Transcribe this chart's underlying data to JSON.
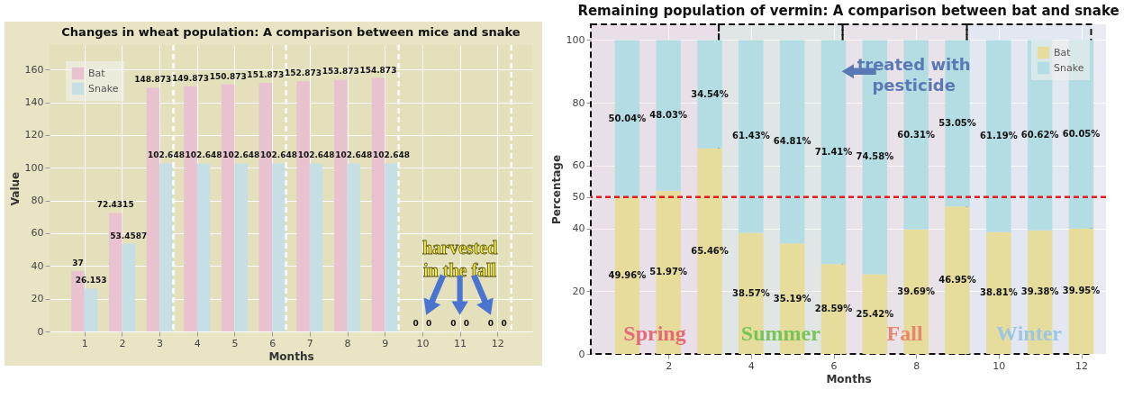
{
  "chart_data": [
    {
      "type": "bar",
      "title": "Changes in wheat population: A comparison between mice and snake",
      "xlabel": "Months",
      "ylabel": "Value",
      "x": [
        1,
        2,
        3,
        4,
        5,
        6,
        7,
        8,
        9,
        10,
        11,
        12
      ],
      "xlim": [
        0.07,
        12.93
      ],
      "xticks": [
        1,
        2,
        3,
        4,
        5,
        6,
        7,
        8,
        9,
        10,
        11,
        12
      ],
      "ylim": [
        0,
        175
      ],
      "yticks": [
        0,
        20,
        40,
        60,
        80,
        100,
        120,
        140,
        160
      ],
      "series": [
        {
          "name": "Bat",
          "color": "#e8c3cf",
          "values": [
            37,
            72.4315,
            148.873,
            149.873,
            150.873,
            151.873,
            152.873,
            153.873,
            154.873,
            0,
            0,
            0
          ]
        },
        {
          "name": "Snake",
          "color": "#c5dfe5",
          "values": [
            26.153,
            53.4587,
            102.648,
            102.648,
            102.648,
            102.648,
            102.648,
            102.648,
            102.648,
            0,
            0,
            0
          ]
        }
      ],
      "data_labels": true,
      "ref_lines": [
        {
          "axis": "x",
          "value": 3.37,
          "color": "#ffffff",
          "line_style": "dashed"
        },
        {
          "axis": "x",
          "value": 6.37,
          "color": "#ffffff",
          "line_style": "dashed"
        },
        {
          "axis": "x",
          "value": 9.37,
          "color": "#ffffff",
          "line_style": "dashed"
        },
        {
          "axis": "x",
          "value": 12.37,
          "color": "#ffffff",
          "line_style": "dashed"
        }
      ],
      "annotations": [
        "harvested\nin the fall"
      ],
      "legend": "top left",
      "grid": true
    },
    {
      "type": "bar",
      "stacked": true,
      "title": "Remaining population of vermin: A comparison between bat and snake",
      "xlabel": "Months",
      "ylabel": "Percentage",
      "x": [
        1,
        2,
        3,
        4,
        5,
        6,
        7,
        8,
        9,
        10,
        11,
        12
      ],
      "xlim": [
        0.12,
        12.6
      ],
      "xticks": [
        2,
        4,
        6,
        8,
        10,
        12
      ],
      "ylim": [
        0,
        105
      ],
      "yticks": [
        0,
        20,
        40,
        50,
        60,
        80,
        100
      ],
      "series": [
        {
          "name": "Bat",
          "color": "#e6dc9b",
          "values": [
            49.96,
            51.97,
            65.46,
            38.57,
            35.19,
            28.59,
            25.42,
            39.69,
            46.95,
            38.81,
            39.38,
            39.95
          ],
          "value_labels": [
            "49.96%",
            "51.97%",
            "65.46%",
            "38.57%",
            "35.19%",
            "28.59%",
            "25.42%",
            "39.69%",
            "46.95%",
            "38.81%",
            "39.38%",
            "39.95%"
          ]
        },
        {
          "name": "Snake",
          "color": "#b3dde3",
          "values": [
            50.04,
            48.03,
            34.54,
            61.43,
            64.81,
            71.41,
            74.58,
            60.31,
            53.05,
            61.19,
            60.62,
            60.05
          ],
          "value_labels": [
            "50.04%",
            "48.03%",
            "34.54%",
            "61.43%",
            "64.81%",
            "71.41%",
            "74.58%",
            "60.31%",
            "53.05%",
            "61.19%",
            "60.62%",
            "60.05%"
          ]
        }
      ],
      "ref_lines": [
        {
          "axis": "y",
          "value": 50,
          "color": "#e8191c",
          "line_style": "dashed"
        }
      ],
      "bands": [
        {
          "axis": "x",
          "from": 0.12,
          "to": 3.22,
          "label": "Spring",
          "color": "#e46a78"
        },
        {
          "axis": "x",
          "from": 3.22,
          "to": 6.22,
          "label": "Summer",
          "color": "#79c45a"
        },
        {
          "axis": "x",
          "from": 6.22,
          "to": 9.23,
          "label": "Fall",
          "color": "#e9866f"
        },
        {
          "axis": "x",
          "from": 9.23,
          "to": 12.24,
          "label": "Winter",
          "color": "#9cc6e6"
        }
      ],
      "annotations": [
        {
          "text": "treated with\npesticide",
          "x": 6.2,
          "y": 90
        }
      ],
      "legend": "top right",
      "grid": true
    }
  ]
}
